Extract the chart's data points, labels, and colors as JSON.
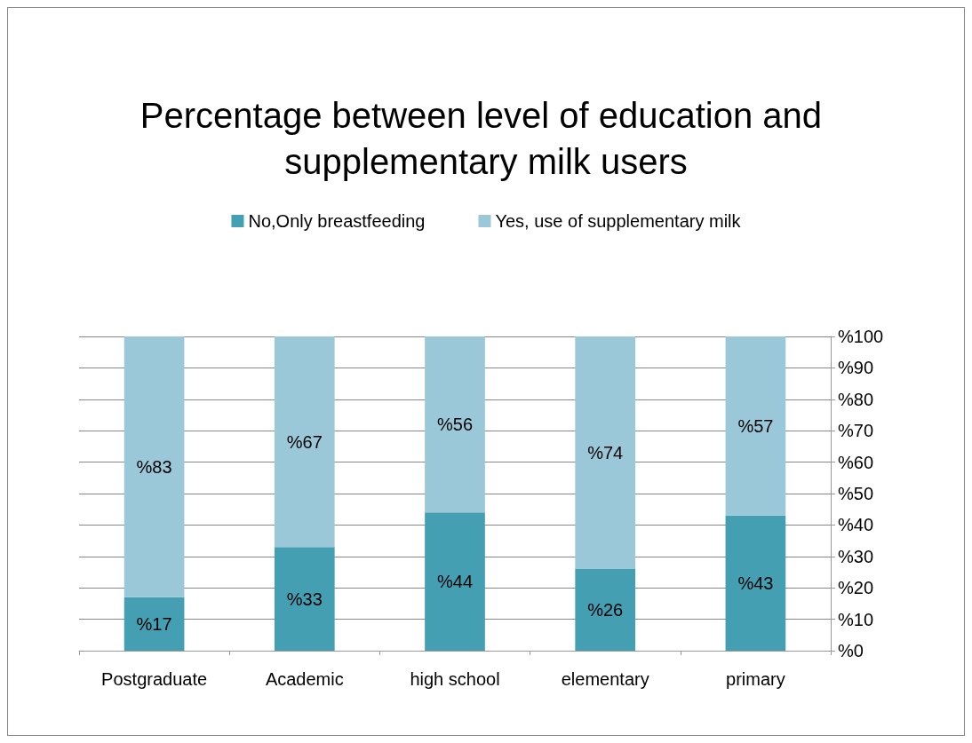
{
  "chart_data": {
    "type": "bar",
    "title": "Percentage between level of education and supplementary milk users",
    "stacked": true,
    "categories": [
      "Postgraduate",
      "Academic",
      "high school",
      "elementary",
      "primary"
    ],
    "series": [
      {
        "name": "No,Only breastfeeding",
        "color": "#449fb3",
        "values": [
          17,
          33,
          44,
          26,
          43
        ],
        "value_labels": [
          "%17",
          "%33",
          "%44",
          "%26",
          "%43"
        ]
      },
      {
        "name": "Yes, use of supplementary milk",
        "color": "#9ac8d9",
        "values": [
          83,
          67,
          56,
          74,
          57
        ],
        "value_labels": [
          "%83",
          "%67",
          "%56",
          "%74",
          "%57"
        ]
      }
    ],
    "ylim": [
      0,
      100
    ],
    "yticks": [
      {
        "value": 0,
        "label": "%0"
      },
      {
        "value": 10,
        "label": "%10"
      },
      {
        "value": 20,
        "label": "%20"
      },
      {
        "value": 30,
        "label": "%30"
      },
      {
        "value": 40,
        "label": "%40"
      },
      {
        "value": 50,
        "label": "%50"
      },
      {
        "value": 60,
        "label": "%60"
      },
      {
        "value": 70,
        "label": "%70"
      },
      {
        "value": 80,
        "label": "%80"
      },
      {
        "value": 90,
        "label": "%90"
      },
      {
        "value": 100,
        "label": "%100"
      }
    ],
    "grid": "y",
    "legend": "top"
  }
}
